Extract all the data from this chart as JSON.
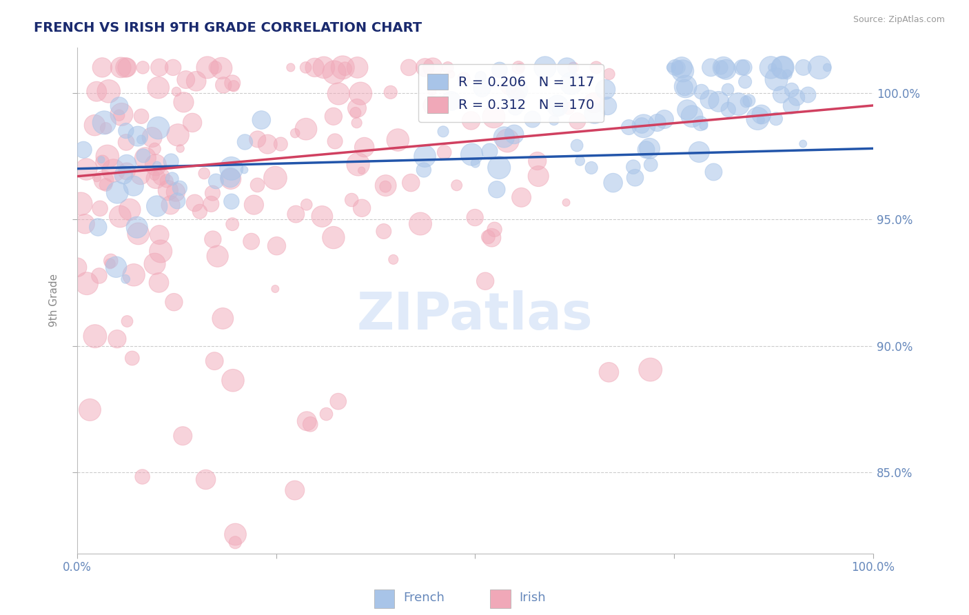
{
  "title": "FRENCH VS IRISH 9TH GRADE CORRELATION CHART",
  "source": "Source: ZipAtlas.com",
  "ylabel": "9th Grade",
  "x_min": 0.0,
  "x_max": 1.0,
  "y_min": 0.818,
  "y_max": 1.018,
  "y_ticks": [
    0.85,
    0.9,
    0.95,
    1.0
  ],
  "y_tick_labels": [
    "85.0%",
    "90.0%",
    "95.0%",
    "100.0%"
  ],
  "french_R": 0.206,
  "french_N": 117,
  "irish_R": 0.312,
  "irish_N": 170,
  "french_color": "#a8c4e8",
  "irish_color": "#f0a8b8",
  "french_line_color": "#2255aa",
  "irish_line_color": "#d04060",
  "watermark_color": "#ccddf5",
  "background_color": "#ffffff",
  "grid_color": "#cccccc",
  "title_color": "#1a2a6e",
  "tick_color": "#6688bb",
  "legend_text_color": "#1a2a6e"
}
